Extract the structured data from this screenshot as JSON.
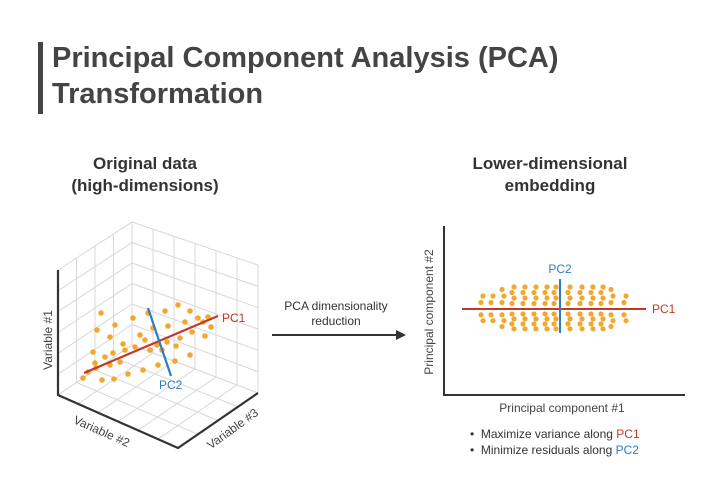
{
  "title_line1": "Principal Component Analysis (PCA)",
  "title_line2": "Transformation",
  "left": {
    "heading_line1": "Original data",
    "heading_line2": "(high-dimensions)",
    "axis_v1": "Variable #1",
    "axis_v2": "Variable #2",
    "axis_v3": "Variable #3",
    "pc1": "PC1",
    "pc2": "PC2"
  },
  "arrow": {
    "line1": "PCA dimensionality",
    "line2": "reduction"
  },
  "right": {
    "heading_line1": "Lower-dimensional",
    "heading_line2": "embedding",
    "ylabel": "Principal component #2",
    "xlabel": "Principal component #1",
    "pc1": "PC1",
    "pc2": "PC2",
    "bullets": [
      {
        "text": "Maximize variance along ",
        "pc": "PC1"
      },
      {
        "text": "Minimize residuals along ",
        "pc": "PC2"
      }
    ]
  },
  "colors": {
    "pc1": "#c0392b",
    "pc2": "#2e7dc4",
    "dots": "#f0a830",
    "text": "#333333"
  }
}
